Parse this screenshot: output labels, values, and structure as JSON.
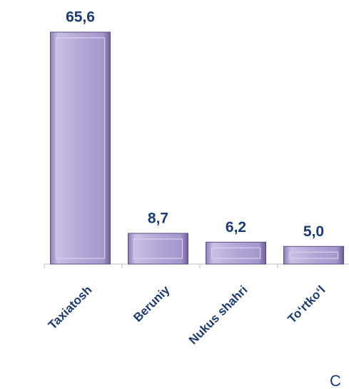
{
  "chart_data": {
    "type": "bar",
    "categories": [
      "Taxiatosh",
      "Beruniy",
      "Nukus shahri",
      "To‘rtko‘l"
    ],
    "values": [
      65.6,
      8.7,
      6.2,
      5.0
    ],
    "value_labels": [
      "65,6",
      "8,7",
      "6,2",
      "5,0"
    ],
    "color": "#b4a7d6",
    "annotation": "C"
  }
}
